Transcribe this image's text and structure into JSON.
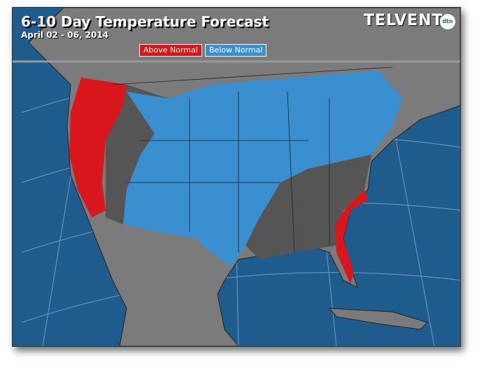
{
  "header": {
    "title": "6-10 Day Temperature Forecast",
    "date": "April 02 - 06, 2014",
    "logo": "TELVENT",
    "logo_badge": "dtn"
  },
  "legend": {
    "items": [
      "Above Normal",
      "Below Normal"
    ]
  }
}
